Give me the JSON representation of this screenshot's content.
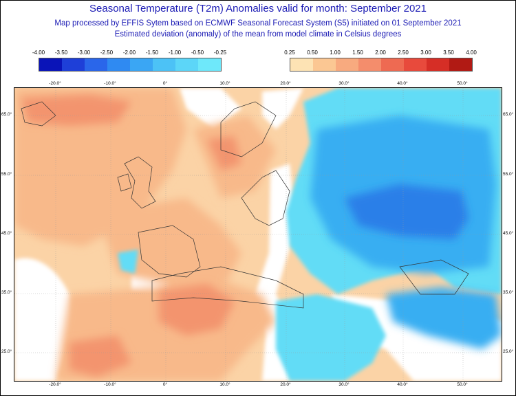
{
  "header": {
    "title": "Seasonal Temperature (T2m) Anomalies valid for month: September 2021",
    "subtitle1": "Map processed by EFFIS Sytem based on ECMWF Seasonal Forecast System (S5) initiated on 01 September 2021",
    "subtitle2": "Estimated deviation (anomaly) of the mean from model climate in Celsius degrees"
  },
  "legend_negative": {
    "ticks": [
      "-4.00",
      "-3.50",
      "-3.00",
      "-2.50",
      "-2.00",
      "-1.50",
      "-1.00",
      "-0.50",
      "-0.25"
    ],
    "colors": [
      "#0a14b8",
      "#1e3fd8",
      "#2a66ea",
      "#2f8af2",
      "#3aa6f4",
      "#4cc2f6",
      "#5cd6f8",
      "#6ee8fa"
    ]
  },
  "legend_positive": {
    "ticks": [
      "0.25",
      "0.50",
      "1.00",
      "1.50",
      "2.00",
      "2.50",
      "3.00",
      "3.50",
      "4.00"
    ],
    "colors": [
      "#fde3b4",
      "#fbc793",
      "#f8aa7f",
      "#f48d6c",
      "#ee6a52",
      "#e84a3c",
      "#d62e26",
      "#b11a14"
    ]
  },
  "map": {
    "lon_labels_top": [
      "-20.0°",
      "-10.0°",
      "0°",
      "10.0°",
      "20.0°",
      "30.0°",
      "40.0°",
      "50.0°"
    ],
    "lon_labels_bottom": [
      "-20.0°",
      "-10.0°",
      "0°",
      "10.0°",
      "20.0°",
      "30.0°",
      "40.0°",
      "50.0°"
    ],
    "lat_labels_left": [
      "65.0°",
      "55.0°",
      "45.0°",
      "35.0°",
      "25.0°"
    ],
    "lat_labels_right": [
      "65.0°",
      "55.0°",
      "45.0°",
      "35.0°",
      "25.0°"
    ],
    "colors": {
      "warm_light": "#fbd3a6",
      "warm_mid": "#f8b98a",
      "warm_strong": "#f3946e",
      "cold_light": "#62dcf6",
      "cold_mid": "#38aef2",
      "cold_strong": "#2c7fe8",
      "neutral": "#ffffff"
    }
  }
}
